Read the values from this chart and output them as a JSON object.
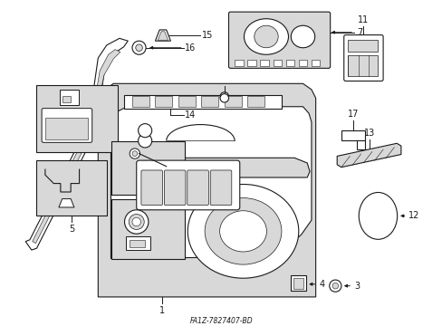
{
  "bg_color": "#ffffff",
  "lc": "#1a1a1a",
  "fc": "#d8d8d8",
  "lw": 0.8,
  "figsize": [
    4.89,
    3.6
  ],
  "dpi": 100,
  "title": "FA1Z-7827407-BD"
}
